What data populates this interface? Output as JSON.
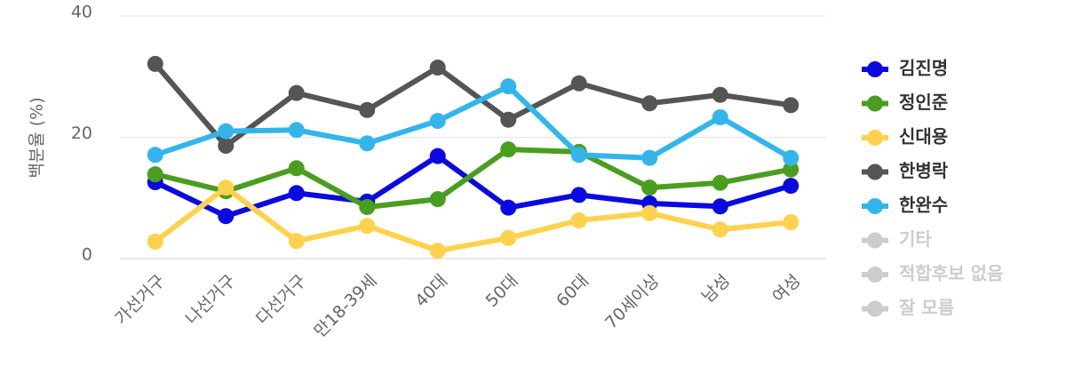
{
  "chart_data": {
    "type": "line",
    "y_label": "백분율 (%)",
    "categories": [
      "가선거구",
      "나선거구",
      "다선거구",
      "만18-39세",
      "40대",
      "50대",
      "60대",
      "70세이상",
      "남성",
      "여성"
    ],
    "ylim": [
      0,
      40
    ],
    "yticks": [
      0,
      20,
      40
    ],
    "grid": true,
    "legend": "right",
    "series": [
      {
        "name": "김진명",
        "color": "#0a0ae0",
        "values": [
          12.6,
          7.0,
          10.8,
          9.4,
          16.9,
          8.4,
          10.5,
          9.1,
          8.6,
          12.0
        ]
      },
      {
        "name": "정인준",
        "color": "#4a9e1f",
        "values": [
          13.9,
          11.1,
          14.9,
          8.5,
          9.8,
          18.0,
          17.6,
          11.7,
          12.5,
          14.7
        ]
      },
      {
        "name": "신대용",
        "color": "#ffd24d",
        "values": [
          2.8,
          11.7,
          2.9,
          5.4,
          1.3,
          3.4,
          6.3,
          7.5,
          4.8,
          6.0
        ]
      },
      {
        "name": "한병락",
        "color": "#555555",
        "values": [
          32.1,
          18.6,
          27.3,
          24.5,
          31.5,
          22.9,
          28.9,
          25.6,
          27.0,
          25.3
        ]
      },
      {
        "name": "한완수",
        "color": "#33b5ec",
        "values": [
          17.1,
          21.0,
          21.2,
          19.0,
          22.7,
          28.4,
          17.1,
          16.6,
          23.3,
          16.6
        ]
      },
      {
        "name": "기타",
        "color": "#cccccc",
        "hidden": true
      },
      {
        "name": "적합후보 없음",
        "color": "#cccccc",
        "hidden": true
      },
      {
        "name": "잘 모름",
        "color": "#cccccc",
        "hidden": true
      }
    ]
  }
}
